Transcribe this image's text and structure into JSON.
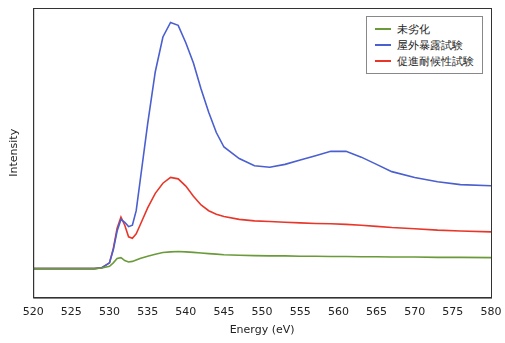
{
  "chart_data": {
    "type": "line",
    "x_label": "Energy (eV)",
    "y_label": "Intensity",
    "x": [
      520,
      522,
      524,
      526,
      528,
      529,
      530,
      530.5,
      531,
      531.5,
      532,
      532.5,
      533,
      533.5,
      534,
      535,
      536,
      537,
      538,
      539,
      540,
      541,
      542,
      543,
      544,
      545,
      547,
      549,
      551,
      553,
      555,
      557,
      559,
      561,
      563,
      565,
      567,
      570,
      573,
      576,
      580
    ],
    "series": [
      {
        "name": "未劣化",
        "color": "#6a9a3a",
        "values": [
          10,
          10,
          10,
          10,
          10,
          10.2,
          10.8,
          12,
          13.5,
          13.8,
          12.8,
          12.3,
          12.5,
          13,
          13.5,
          14.3,
          15,
          15.6,
          15.8,
          15.9,
          15.8,
          15.6,
          15.4,
          15.2,
          15,
          14.8,
          14.6,
          14.5,
          14.4,
          14.4,
          14.3,
          14.3,
          14.2,
          14.2,
          14.1,
          14.1,
          14,
          14,
          13.9,
          13.9,
          13.8
        ]
      },
      {
        "name": "屋外暴露試験",
        "color": "#4a5fd0",
        "values": [
          10,
          10,
          10,
          10,
          10,
          10.3,
          12,
          16.5,
          23,
          27,
          26,
          24.5,
          25,
          30,
          40,
          60,
          78,
          90,
          95,
          94,
          88,
          81,
          72,
          64,
          57,
          52,
          48,
          45.5,
          45,
          46,
          47.5,
          49,
          50.5,
          50.5,
          48.5,
          46,
          43.5,
          41.5,
          40,
          39,
          38.6
        ]
      },
      {
        "name": "促進耐候性試験",
        "color": "#e8372a",
        "values": [
          10,
          10,
          10,
          10,
          10,
          10.3,
          12,
          17,
          24,
          27.8,
          25,
          21,
          20.5,
          22,
          25,
          31,
          36,
          39.5,
          41.5,
          41,
          38.5,
          35,
          32,
          30,
          28.8,
          28,
          27,
          26.5,
          26.3,
          26,
          25.8,
          25.6,
          25.5,
          25.3,
          25,
          24.6,
          24.2,
          23.8,
          23.3,
          23,
          22.7
        ]
      }
    ],
    "xlim": [
      520,
      580
    ],
    "xticks": [
      520,
      525,
      530,
      535,
      540,
      545,
      550,
      555,
      560,
      565,
      570,
      575,
      580
    ],
    "ylim": [
      0,
      100
    ],
    "tick_labels": "x",
    "grid": false,
    "legend": "upper right"
  }
}
